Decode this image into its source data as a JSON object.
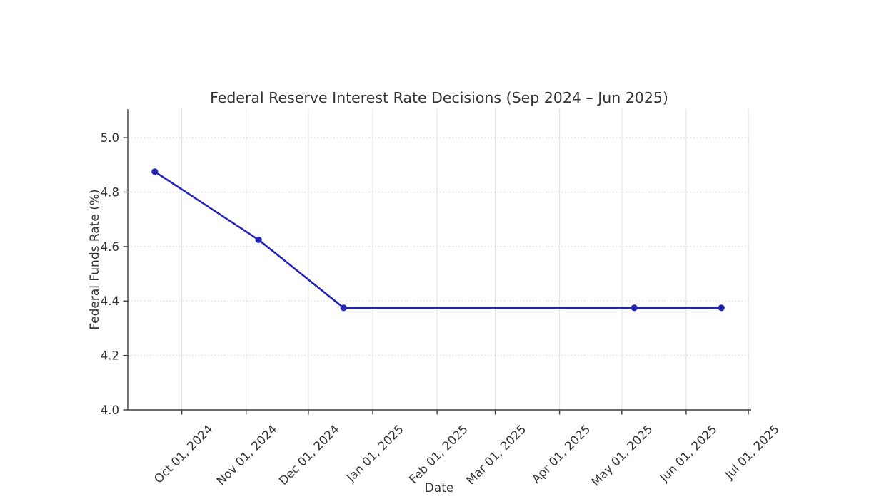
{
  "chart_data": {
    "type": "line",
    "title": "Federal Reserve Interest Rate Decisions (Sep 2024 – Jun 2025)",
    "xlabel": "Date",
    "ylabel": "Federal Funds Rate (%)",
    "legend_position": "none",
    "grid": {
      "vertical": "solid",
      "horizontal": "dotted"
    },
    "series": [
      {
        "color": "#2525b5",
        "marker": "circle",
        "points": [
          {
            "date": "2024-09-18",
            "value": 4.875
          },
          {
            "date": "2024-11-07",
            "value": 4.625
          },
          {
            "date": "2024-12-18",
            "value": 4.375
          },
          {
            "date": "2025-05-07",
            "value": 4.375
          },
          {
            "date": "2025-06-18",
            "value": 4.375
          }
        ]
      }
    ],
    "x_axis": {
      "type": "date",
      "min": "2024-09-05",
      "max": "2025-07-02",
      "tick_rotation_deg": 45,
      "ticks": [
        {
          "date": "2024-10-01",
          "label": "Oct 01, 2024"
        },
        {
          "date": "2024-11-01",
          "label": "Nov 01, 2024"
        },
        {
          "date": "2024-12-01",
          "label": "Dec 01, 2024"
        },
        {
          "date": "2025-01-01",
          "label": "Jan 01, 2025"
        },
        {
          "date": "2025-02-01",
          "label": "Feb 01, 2025"
        },
        {
          "date": "2025-03-01",
          "label": "Mar 01, 2025"
        },
        {
          "date": "2025-04-01",
          "label": "Apr 01, 2025"
        },
        {
          "date": "2025-05-01",
          "label": "May 01, 2025"
        },
        {
          "date": "2025-06-01",
          "label": "Jun 01, 2025"
        },
        {
          "date": "2025-07-01",
          "label": "Jul 01, 2025"
        }
      ]
    },
    "y_axis": {
      "min": 4.0,
      "max": 5.105,
      "ticks": [
        {
          "value": 4.0,
          "label": "4.0"
        },
        {
          "value": 4.2,
          "label": "4.2"
        },
        {
          "value": 4.4,
          "label": "4.4"
        },
        {
          "value": 4.6,
          "label": "4.6"
        },
        {
          "value": 4.8,
          "label": "4.8"
        },
        {
          "value": 5.0,
          "label": "5.0"
        }
      ]
    }
  },
  "style": {
    "background": "#ffffff",
    "axis_color": "#3c3c3c",
    "tick_label_color": "#343434",
    "grid_vertical_color": "#e4e4e4",
    "grid_horizontal_color": "#d8d8d8",
    "marker_radius": 4.6,
    "line_width": 2.6
  }
}
